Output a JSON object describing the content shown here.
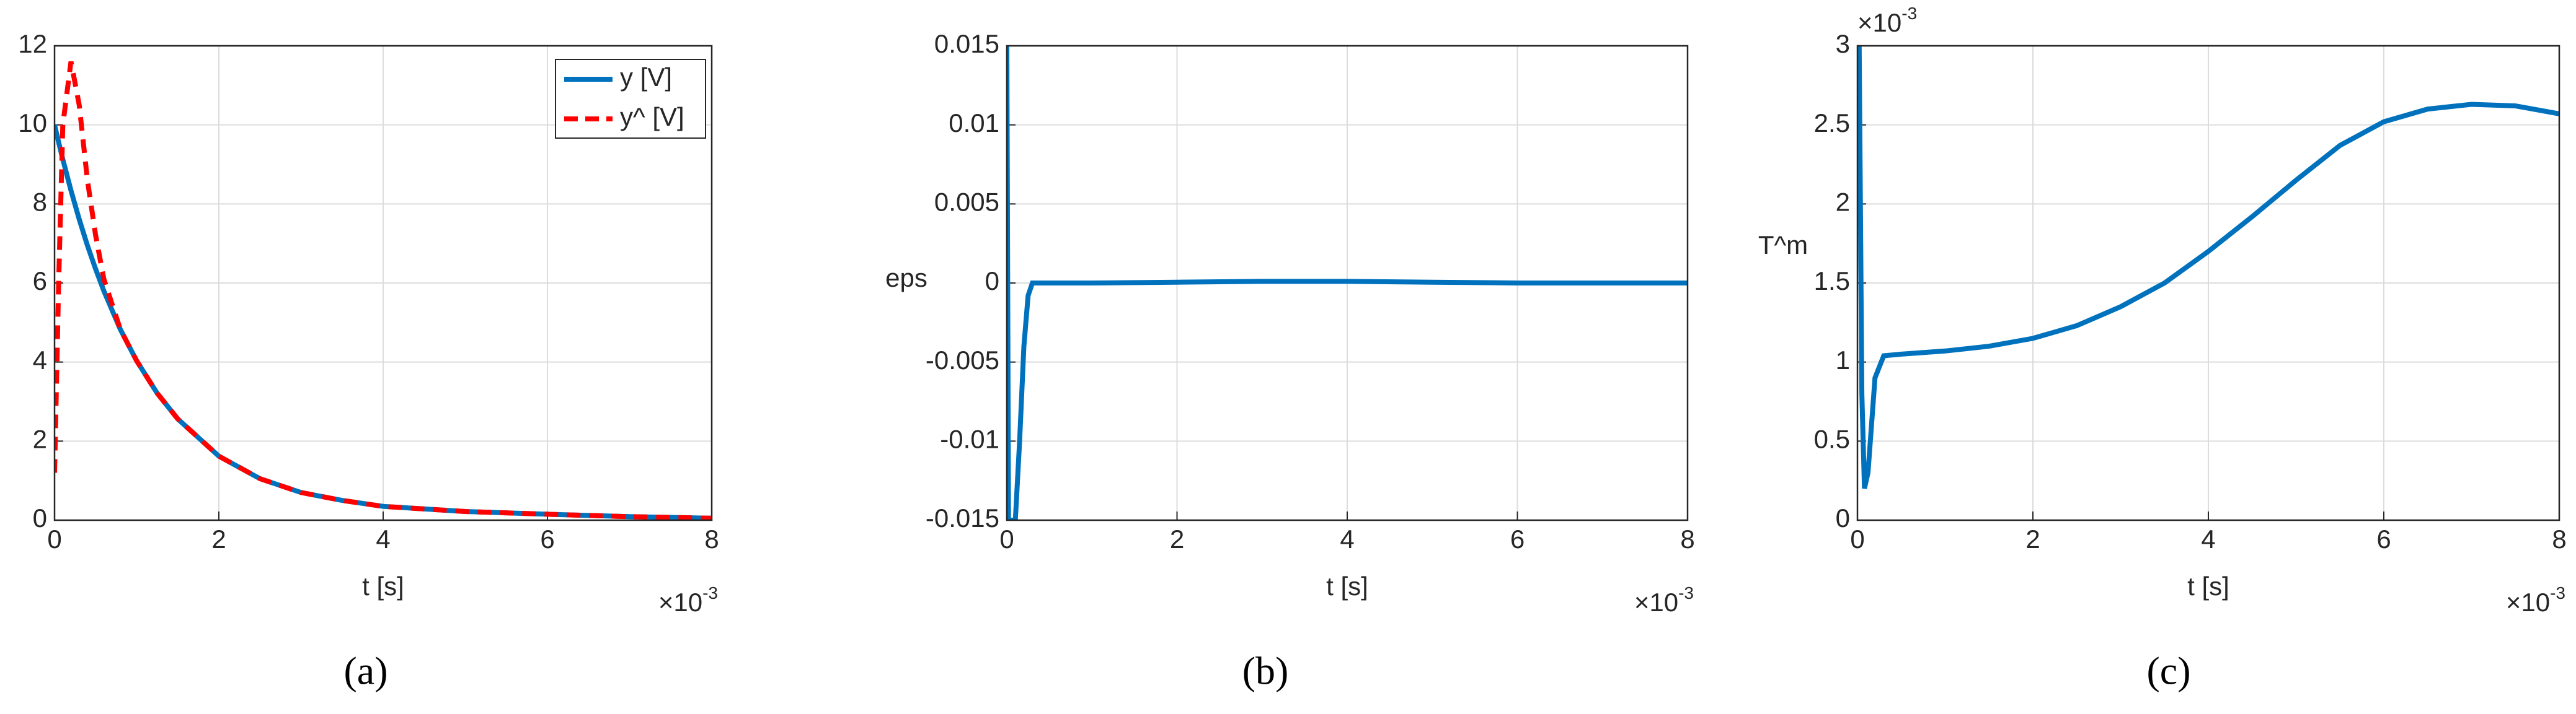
{
  "chart_data": [
    {
      "type": "line",
      "caption": "(a)",
      "x_label": "t [s]",
      "x_multiplier": {
        "base": "×10",
        "exponent": "-3"
      },
      "xlim": [
        0,
        8
      ],
      "xticks": [
        0,
        2,
        4,
        6,
        8
      ],
      "ylim": [
        0,
        12
      ],
      "yticks": [
        0,
        2,
        4,
        6,
        8,
        10,
        12
      ],
      "grid": true,
      "legend": "northeast",
      "x": [
        0,
        0.05,
        0.1,
        0.2,
        0.3,
        0.4,
        0.5,
        0.6,
        0.8,
        1,
        1.25,
        1.5,
        2,
        2.5,
        3,
        3.5,
        4,
        5,
        6,
        7,
        8
      ],
      "series": [
        {
          "name": "y [V]",
          "color": "#0072bd",
          "dash": false,
          "values": [
            10,
            9.56,
            9.13,
            8.34,
            7.61,
            6.95,
            6.35,
            5.8,
            4.83,
            4.03,
            3.21,
            2.56,
            1.62,
            1.05,
            0.7,
            0.5,
            0.35,
            0.22,
            0.15,
            0.09,
            0.05
          ]
        },
        {
          "name": "y^ [V]",
          "color": "#ff0000",
          "dash": true,
          "values": [
            1.2,
            6,
            10,
            11.6,
            10.5,
            8.6,
            7.2,
            6.1,
            4.83,
            4.03,
            3.21,
            2.56,
            1.62,
            1.05,
            0.7,
            0.5,
            0.35,
            0.22,
            0.15,
            0.09,
            0.05
          ]
        }
      ]
    },
    {
      "type": "line",
      "caption": "(b)",
      "x_label": "t [s]",
      "y_label": "eps",
      "x_multiplier": {
        "base": "×10",
        "exponent": "-3"
      },
      "xlim": [
        0,
        8
      ],
      "xticks": [
        0,
        2,
        4,
        6,
        8
      ],
      "ylim": [
        -0.015,
        0.015
      ],
      "yticks": [
        -0.015,
        -0.01,
        -0.005,
        0,
        0.005,
        0.01,
        0.015
      ],
      "grid": true,
      "x": [
        0,
        0.02,
        0.1,
        0.15,
        0.2,
        0.25,
        0.3,
        0.5,
        1,
        2,
        3,
        3.5,
        4,
        5,
        6,
        7,
        8
      ],
      "series": [
        {
          "name": "eps",
          "color": "#0072bd",
          "dash": false,
          "values": [
            0.015,
            -0.015,
            -0.015,
            -0.01,
            -0.004,
            -0.0008,
            0,
            0,
            0,
            5e-05,
            0.0001,
            0.0001,
            0.0001,
            5e-05,
            0,
            0,
            0
          ]
        }
      ]
    },
    {
      "type": "line",
      "caption": "(c)",
      "x_label": "t [s]",
      "y_label": "T^m",
      "x_multiplier": {
        "base": "×10",
        "exponent": "-3"
      },
      "y_multiplier": {
        "base": "×10",
        "exponent": "-3"
      },
      "xlim": [
        0,
        8
      ],
      "xticks": [
        0,
        2,
        4,
        6,
        8
      ],
      "ylim": [
        0,
        3
      ],
      "yticks": [
        0,
        0.5,
        1,
        1.5,
        2,
        2.5,
        3
      ],
      "grid": true,
      "x": [
        0,
        0.02,
        0.05,
        0.08,
        0.12,
        0.2,
        0.3,
        0.5,
        1,
        1.5,
        2,
        2.5,
        3,
        3.5,
        4,
        4.5,
        5,
        5.5,
        6,
        6.5,
        7,
        7.5,
        8
      ],
      "series": [
        {
          "name": "T^m",
          "color": "#0072bd",
          "dash": false,
          "values": [
            3,
            3,
            0.8,
            0.2,
            0.3,
            0.9,
            1.04,
            1.05,
            1.07,
            1.1,
            1.15,
            1.23,
            1.35,
            1.5,
            1.7,
            1.92,
            2.15,
            2.37,
            2.52,
            2.6,
            2.63,
            2.62,
            2.57
          ]
        }
      ]
    }
  ]
}
